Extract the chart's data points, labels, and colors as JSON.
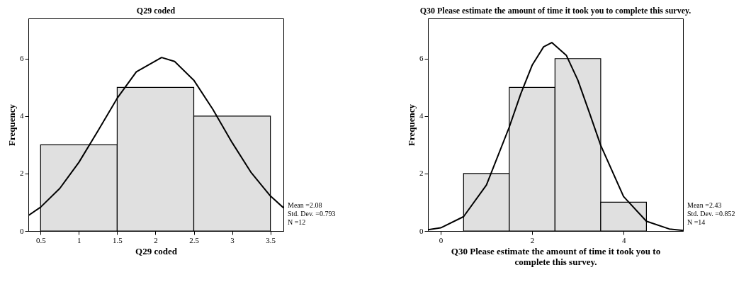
{
  "chart_data": [
    {
      "type": "histogram",
      "title": "Q29 coded",
      "xlabel": "Q29 coded",
      "ylabel": "Frequency",
      "bins": [
        0.5,
        1.5,
        2.5,
        3.5
      ],
      "values": [
        3,
        5,
        4
      ],
      "color": "#e0e0e0",
      "xlim": [
        0.34,
        3.67
      ],
      "xticks": [
        0.5,
        1,
        1.5,
        2,
        2.5,
        3,
        3.5
      ],
      "ylim": [
        0,
        7.4
      ],
      "yticks": [
        0,
        2,
        4,
        6
      ],
      "grid": false,
      "series": [
        {
          "type": "line",
          "color": "#000000",
          "x": [
            0.34,
            0.5,
            0.75,
            1.0,
            1.25,
            1.5,
            1.75,
            2.08,
            2.25,
            2.5,
            2.75,
            3.0,
            3.25,
            3.5,
            3.67
          ],
          "values": [
            0.54,
            0.83,
            1.48,
            2.39,
            3.49,
            4.62,
            5.54,
            6.04,
            5.9,
            5.25,
            4.23,
            3.08,
            2.03,
            1.22,
            0.81
          ]
        }
      ],
      "annotations": [
        "Mean =2.08",
        "Std. Dev. =0.793",
        "N =12"
      ]
    },
    {
      "type": "histogram",
      "title": "Q30 Please estimate the amount of time it took you to complete this survey.",
      "xlabel": "Q30 Please estimate the amount of time it took you to complete this survey.",
      "ylabel": "Frequency",
      "bins": [
        0.5,
        1.5,
        2.5,
        3.5,
        4.5
      ],
      "values": [
        2,
        5,
        6,
        1
      ],
      "color": "#e0e0e0",
      "xlim": [
        -0.28,
        5.3
      ],
      "xticks": [
        0,
        2,
        4
      ],
      "ylim": [
        0,
        7.4
      ],
      "yticks": [
        0,
        2,
        4,
        6
      ],
      "grid": false,
      "series": [
        {
          "type": "line",
          "color": "#000000",
          "x": [
            -0.28,
            0,
            0.5,
            1.0,
            1.5,
            1.75,
            2.0,
            2.25,
            2.43,
            2.75,
            3.0,
            3.25,
            3.5,
            4.0,
            4.5,
            5.0,
            5.3
          ],
          "values": [
            0.04,
            0.11,
            0.5,
            1.6,
            3.62,
            4.77,
            5.77,
            6.41,
            6.56,
            6.11,
            5.25,
            4.13,
            2.98,
            1.2,
            0.34,
            0.07,
            0.02
          ]
        }
      ],
      "annotations": [
        "Mean =2.43",
        "Std. Dev. =0.852",
        "N =14"
      ]
    }
  ]
}
